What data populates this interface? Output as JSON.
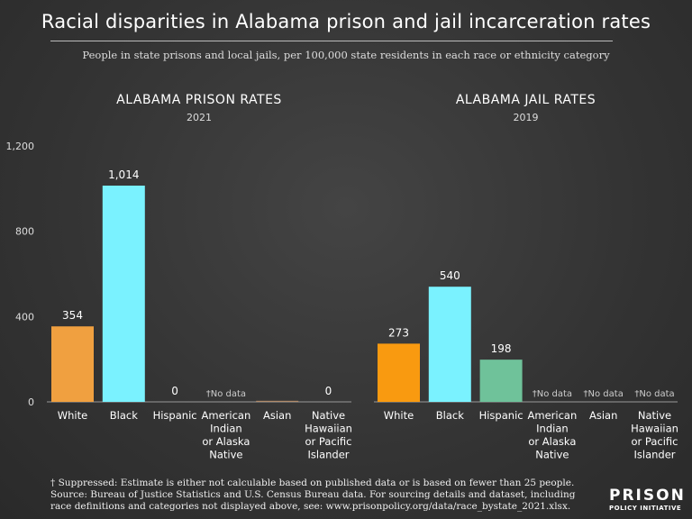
{
  "title": "Racial disparities in Alabama prison and jail incarceration rates",
  "subtitle": "People in state prisons and local jails, per 100,000 state residents in each race or ethnicity category",
  "chart_data": [
    {
      "type": "bar",
      "title": "ALABAMA PRISON RATES",
      "subtitle": "2021",
      "categories": [
        "White",
        "Black",
        "Hispanic",
        "American Indian or Alaska Native",
        "Asian",
        "Native Hawaiian or Pacific Islander"
      ],
      "values": [
        354,
        1014,
        0,
        null,
        5,
        0
      ],
      "labels": [
        "354",
        "1,014",
        "0",
        "†No data",
        "",
        "0"
      ],
      "colors": [
        "#f0a040",
        "#7af2ff",
        "#6fc29a",
        "#888888",
        "#b08a6a",
        "#888888"
      ],
      "ylim": [
        0,
        1200
      ],
      "yticks": [
        0,
        400,
        800,
        1200
      ],
      "ytick_labels": [
        "0",
        "400",
        "800",
        "1,200"
      ],
      "grid": false
    },
    {
      "type": "bar",
      "title": "ALABAMA JAIL RATES",
      "subtitle": "2019",
      "categories": [
        "White",
        "Black",
        "Hispanic",
        "American Indian or Alaska Native",
        "Asian",
        "Native Hawaiian or Pacific Islander"
      ],
      "values": [
        273,
        540,
        198,
        null,
        null,
        null
      ],
      "labels": [
        "273",
        "540",
        "198",
        "†No data",
        "†No data",
        "†No data"
      ],
      "colors": [
        "#f99a10",
        "#7af2ff",
        "#6fc29a",
        "#888888",
        "#888888",
        "#888888"
      ],
      "ylim": [
        0,
        1200
      ],
      "grid": false
    }
  ],
  "footer": [
    "† Suppressed: Estimate is either not calculable based on published data or is based on fewer than 25 people.",
    "Source: Bureau of Justice Statistics and U.S. Census Bureau data. For sourcing details and dataset, including",
    "race definitions and categories not displayed above, see: www.prisonpolicy.org/data/race_bystate_2021.xlsx."
  ],
  "logo": {
    "line1": "PRISON",
    "line2": "POLICY INITIATIVE"
  }
}
